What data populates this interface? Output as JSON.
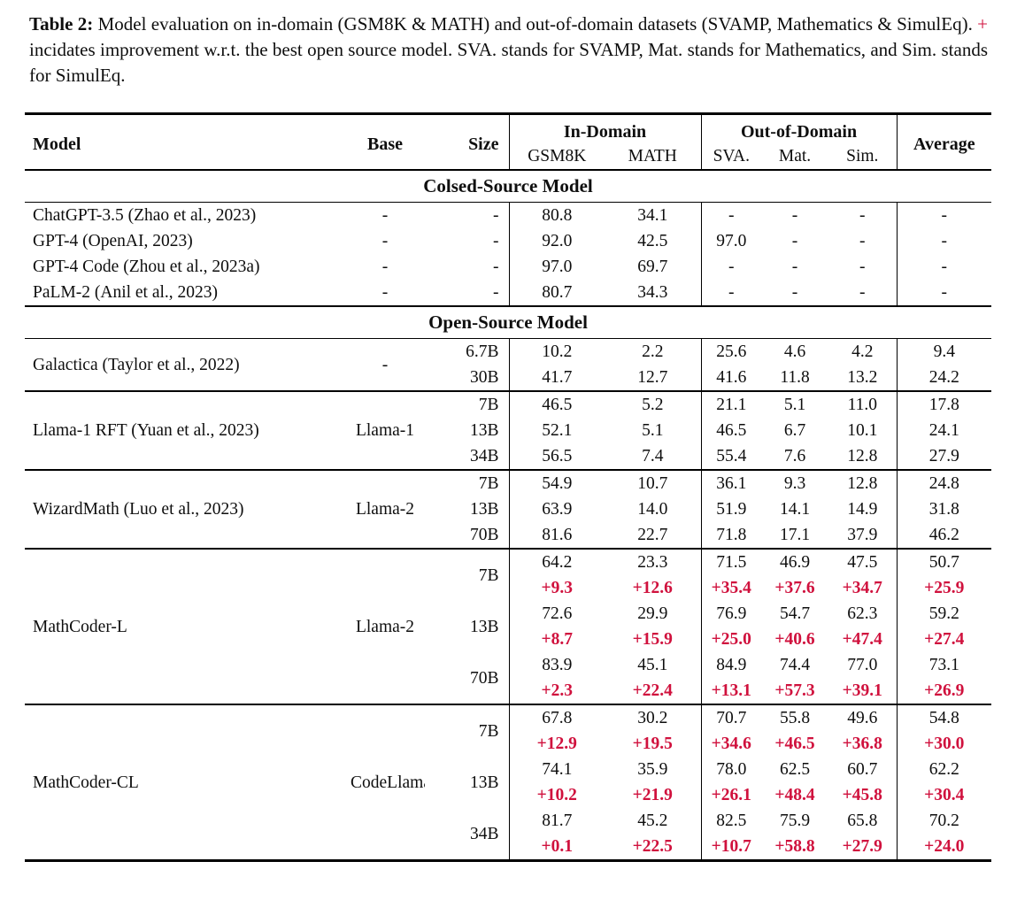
{
  "accent_red": "#d0113d",
  "caption": {
    "label": "Table 2:",
    "before_plus": "Model evaluation on in-domain (GSM8K & MATH) and out-of-domain datasets (SVAMP, Mathematics & SimulEq).",
    "plus": "+",
    "after_plus": "incidates improvement w.r.t. the best open source model. SVA. stands for SVAMP, Mat. stands for Mathematics, and Sim. stands for SimulEq."
  },
  "table": {
    "header": {
      "model": "Model",
      "base": "Base",
      "size": "Size",
      "in_domain": "In-Domain",
      "out_of_domain": "Out-of-Domain",
      "average": "Average",
      "gsm8k": "GSM8K",
      "math": "MATH",
      "sva": "SVA.",
      "mat": "Mat.",
      "sim": "Sim."
    },
    "score_columns": [
      "GSM8K",
      "MATH",
      "SVA.",
      "Mat.",
      "Sim.",
      "Average"
    ],
    "sections": [
      {
        "title": "Colsed-Source Model",
        "groups": [
          {
            "model": "ChatGPT-3.5 (Zhao et al., 2023)",
            "base": "-",
            "rows": [
              {
                "size": "-",
                "values": [
                  "80.8",
                  "34.1",
                  "-",
                  "-",
                  "-",
                  "-"
                ]
              }
            ]
          },
          {
            "model": "GPT-4 (OpenAI, 2023)",
            "base": "-",
            "rows": [
              {
                "size": "-",
                "values": [
                  "92.0",
                  "42.5",
                  "97.0",
                  "-",
                  "-",
                  "-"
                ]
              }
            ]
          },
          {
            "model": "GPT-4 Code (Zhou et al., 2023a)",
            "base": "-",
            "rows": [
              {
                "size": "-",
                "values": [
                  "97.0",
                  "69.7",
                  "-",
                  "-",
                  "-",
                  "-"
                ]
              }
            ]
          },
          {
            "model": "PaLM-2 (Anil et al., 2023)",
            "base": "-",
            "rows": [
              {
                "size": "-",
                "values": [
                  "80.7",
                  "34.3",
                  "-",
                  "-",
                  "-",
                  "-"
                ]
              }
            ]
          }
        ]
      },
      {
        "title": "Open-Source Model",
        "groups": [
          {
            "model": "Galactica (Taylor et al., 2022)",
            "base": "-",
            "rows": [
              {
                "size": "6.7B",
                "values": [
                  "10.2",
                  "2.2",
                  "25.6",
                  "4.6",
                  "4.2",
                  "9.4"
                ]
              },
              {
                "size": "30B",
                "values": [
                  "41.7",
                  "12.7",
                  "41.6",
                  "11.8",
                  "13.2",
                  "24.2"
                ]
              }
            ]
          },
          {
            "model": "Llama-1 RFT (Yuan et al., 2023)",
            "base": "Llama-1",
            "rows": [
              {
                "size": "7B",
                "values": [
                  "46.5",
                  "5.2",
                  "21.1",
                  "5.1",
                  "11.0",
                  "17.8"
                ]
              },
              {
                "size": "13B",
                "values": [
                  "52.1",
                  "5.1",
                  "46.5",
                  "6.7",
                  "10.1",
                  "24.1"
                ]
              },
              {
                "size": "34B",
                "values": [
                  "56.5",
                  "7.4",
                  "55.4",
                  "7.6",
                  "12.8",
                  "27.9"
                ]
              }
            ]
          },
          {
            "model": "WizardMath (Luo et al., 2023)",
            "base": "Llama-2",
            "rows": [
              {
                "size": "7B",
                "values": [
                  "54.9",
                  "10.7",
                  "36.1",
                  "9.3",
                  "12.8",
                  "24.8"
                ]
              },
              {
                "size": "13B",
                "values": [
                  "63.9",
                  "14.0",
                  "51.9",
                  "14.1",
                  "14.9",
                  "31.8"
                ]
              },
              {
                "size": "70B",
                "values": [
                  "81.6",
                  "22.7",
                  "71.8",
                  "17.1",
                  "37.9",
                  "46.2"
                ]
              }
            ]
          },
          {
            "model": "MathCoder-L",
            "base": "Llama-2",
            "rows": [
              {
                "size": "7B",
                "values": [
                  "64.2",
                  "23.3",
                  "71.5",
                  "46.9",
                  "47.5",
                  "50.7"
                ],
                "delta": [
                  "+9.3",
                  "+12.6",
                  "+35.4",
                  "+37.6",
                  "+34.7",
                  "+25.9"
                ]
              },
              {
                "size": "13B",
                "values": [
                  "72.6",
                  "29.9",
                  "76.9",
                  "54.7",
                  "62.3",
                  "59.2"
                ],
                "delta": [
                  "+8.7",
                  "+15.9",
                  "+25.0",
                  "+40.6",
                  "+47.4",
                  "+27.4"
                ]
              },
              {
                "size": "70B",
                "values": [
                  "83.9",
                  "45.1",
                  "84.9",
                  "74.4",
                  "77.0",
                  "73.1"
                ],
                "delta": [
                  "+2.3",
                  "+22.4",
                  "+13.1",
                  "+57.3",
                  "+39.1",
                  "+26.9"
                ]
              }
            ]
          },
          {
            "model": "MathCoder-CL",
            "base": "CodeLlama",
            "rows": [
              {
                "size": "7B",
                "values": [
                  "67.8",
                  "30.2",
                  "70.7",
                  "55.8",
                  "49.6",
                  "54.8"
                ],
                "delta": [
                  "+12.9",
                  "+19.5",
                  "+34.6",
                  "+46.5",
                  "+36.8",
                  "+30.0"
                ]
              },
              {
                "size": "13B",
                "values": [
                  "74.1",
                  "35.9",
                  "78.0",
                  "62.5",
                  "60.7",
                  "62.2"
                ],
                "delta": [
                  "+10.2",
                  "+21.9",
                  "+26.1",
                  "+48.4",
                  "+45.8",
                  "+30.4"
                ]
              },
              {
                "size": "34B",
                "values": [
                  "81.7",
                  "45.2",
                  "82.5",
                  "75.9",
                  "65.8",
                  "70.2"
                ],
                "delta": [
                  "+0.1",
                  "+22.5",
                  "+10.7",
                  "+58.8",
                  "+27.9",
                  "+24.0"
                ]
              }
            ]
          }
        ]
      }
    ]
  }
}
